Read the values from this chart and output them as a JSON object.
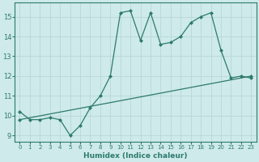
{
  "xlabel": "Humidex (Indice chaleur)",
  "ylabel": "",
  "bg_color": "#ceeaea",
  "grid_color": "#b8d8d8",
  "line_color": "#2d7a6e",
  "xlim": [
    -0.5,
    23.5
  ],
  "ylim": [
    8.7,
    15.7
  ],
  "yticks": [
    9,
    10,
    11,
    12,
    13,
    14,
    15
  ],
  "xticks": [
    0,
    1,
    2,
    3,
    4,
    5,
    6,
    7,
    8,
    9,
    10,
    11,
    12,
    13,
    14,
    15,
    16,
    17,
    18,
    19,
    20,
    21,
    22,
    23
  ],
  "line1_x": [
    0,
    1,
    2,
    3,
    4,
    5,
    6,
    7,
    8,
    9,
    10,
    11,
    12,
    13,
    14,
    15,
    16,
    17,
    18,
    19,
    20,
    21,
    22,
    23
  ],
  "line1_y": [
    10.2,
    9.8,
    9.8,
    9.9,
    9.8,
    9.0,
    9.5,
    10.4,
    11.0,
    12.0,
    15.2,
    15.3,
    13.8,
    15.2,
    13.6,
    13.7,
    14.0,
    14.7,
    15.0,
    15.2,
    13.3,
    11.9,
    12.0,
    11.9
  ],
  "line2_x": [
    0,
    23
  ],
  "line2_y": [
    9.8,
    12.0
  ],
  "marker": "D",
  "marker_size": 2.0,
  "linewidth": 0.9
}
